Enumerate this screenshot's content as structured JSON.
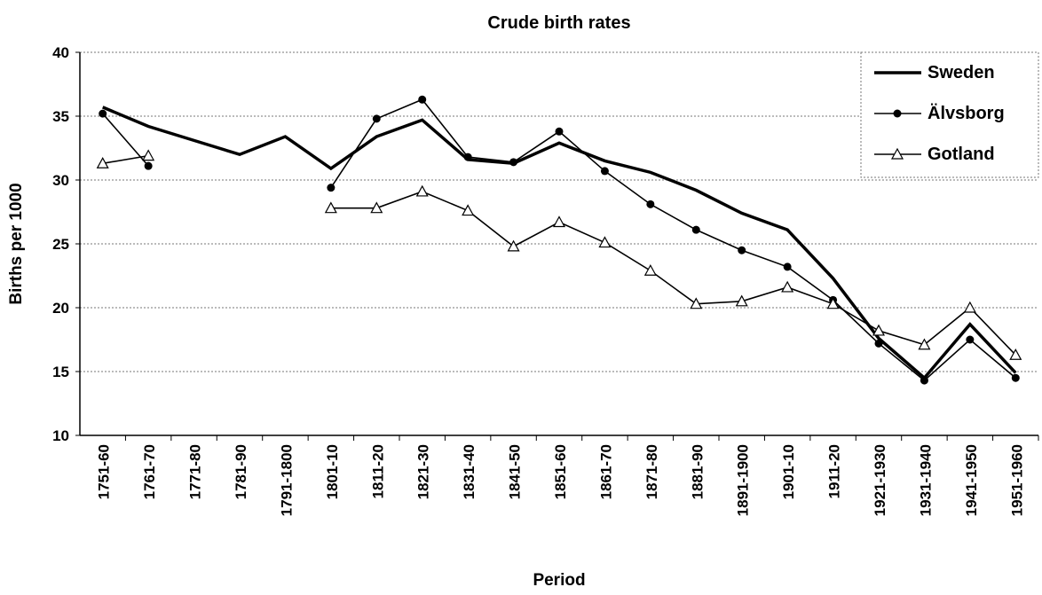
{
  "chart_data": {
    "type": "line",
    "title": "Crude birth rates",
    "x_label": "Period",
    "y_label": "Births per 1000",
    "categories": [
      "1751-60",
      "1761-70",
      "1771-80",
      "1781-90",
      "1791-1800",
      "1801-10",
      "1811-20",
      "1821-30",
      "1831-40",
      "1841-50",
      "1851-60",
      "1861-70",
      "1871-80",
      "1881-90",
      "1891-1900",
      "1901-10",
      "1911-20",
      "1921-1930",
      "1931-1940",
      "1941-1950",
      "1951-1960"
    ],
    "series": [
      {
        "name": "Sweden",
        "color": "#000000",
        "marker": "none",
        "values": [
          35.7,
          34.2,
          33.1,
          32.0,
          33.4,
          30.9,
          33.4,
          34.7,
          31.6,
          31.3,
          32.9,
          31.5,
          30.6,
          29.2,
          27.4,
          26.1,
          22.3,
          17.6,
          14.5,
          18.7,
          14.9
        ]
      },
      {
        "name": "Älvsborg",
        "color": "#000000",
        "marker": "circle",
        "values": [
          35.2,
          31.1,
          null,
          null,
          null,
          29.4,
          34.8,
          36.3,
          31.8,
          31.4,
          33.8,
          30.7,
          28.1,
          26.1,
          24.5,
          23.2,
          20.6,
          17.2,
          14.3,
          17.5,
          14.5
        ]
      },
      {
        "name": "Gotland",
        "color": "#000000",
        "marker": "triangle",
        "values": [
          31.3,
          31.9,
          null,
          null,
          null,
          27.8,
          27.8,
          29.1,
          27.6,
          24.8,
          26.7,
          25.1,
          22.9,
          20.3,
          20.5,
          21.6,
          20.3,
          18.2,
          17.1,
          20.0,
          16.3
        ]
      }
    ],
    "ylim": [
      10,
      40
    ],
    "yticks": [
      10,
      15,
      20,
      25,
      30,
      35,
      40
    ],
    "grid": true,
    "legend": "top-right"
  }
}
